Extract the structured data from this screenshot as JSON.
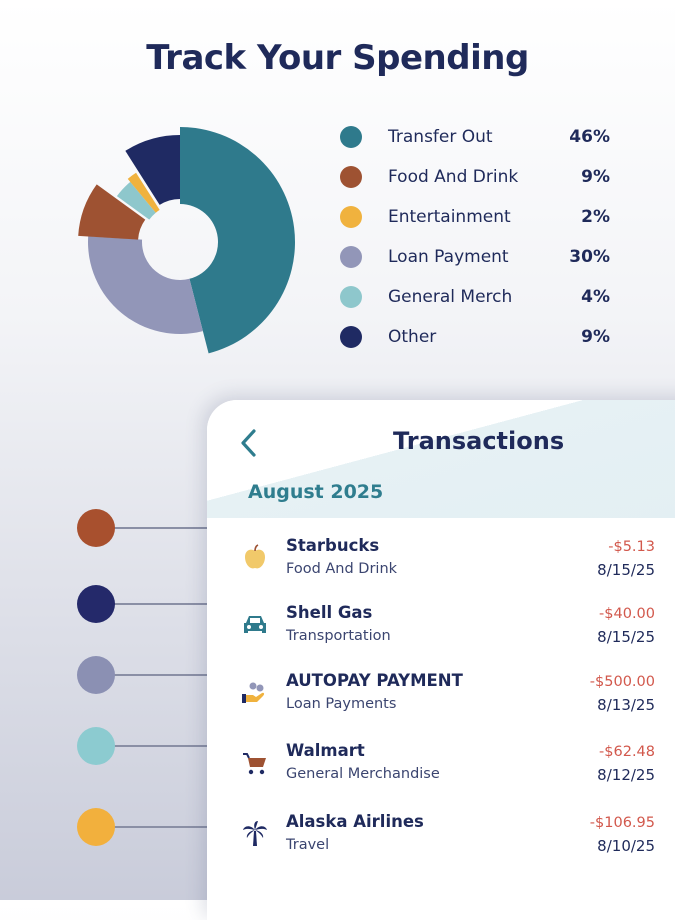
{
  "page": {
    "title": "Track Your Spending"
  },
  "chart_data": {
    "type": "pie",
    "categories": [
      "Transfer Out",
      "Food And Drink",
      "Entertainment",
      "Loan Payment",
      "General Merch",
      "Other"
    ],
    "values": [
      46,
      9,
      2,
      30,
      4,
      9
    ],
    "value_labels": [
      "46%",
      "9%",
      "2%",
      "30%",
      "4%",
      "9%"
    ],
    "colors": [
      "#2f7a8c",
      "#9e5232",
      "#f0b23e",
      "#9296b8",
      "#8ec7cc",
      "#1f2a63"
    ],
    "legend_position": "right"
  },
  "timeline": {
    "colors": [
      "#a8502e",
      "#24296a",
      "#8b90b3",
      "#8ccbd0",
      "#f2b03d"
    ]
  },
  "transactions_card": {
    "title": "Transactions",
    "month": "August 2025",
    "back_icon": "chevron-left-icon",
    "items": [
      {
        "name": "Starbucks",
        "category": "Food And Drink",
        "amount": "-$5.13",
        "date": "8/15/25",
        "icon": "apple-icon",
        "icon_color": "#f1c96a"
      },
      {
        "name": "Shell Gas",
        "category": "Transportation",
        "amount": "-$40.00",
        "date": "8/15/25",
        "icon": "car-icon",
        "icon_color": "#2f7a8c"
      },
      {
        "name": "AUTOPAY PAYMENT",
        "category": "Loan Payments",
        "amount": "-$500.00",
        "date": "8/13/25",
        "icon": "hand-coins-icon",
        "icon_color": "#f0b23e"
      },
      {
        "name": "Walmart",
        "category": "General Merchandise",
        "amount": "-$62.48",
        "date": "8/12/25",
        "icon": "shopping-cart-icon",
        "icon_color": "#9e5232"
      },
      {
        "name": "Alaska Airlines",
        "category": "Travel",
        "amount": "-$106.95",
        "date": "8/10/25",
        "icon": "palm-tree-icon",
        "icon_color": "#1f2a63"
      }
    ]
  }
}
